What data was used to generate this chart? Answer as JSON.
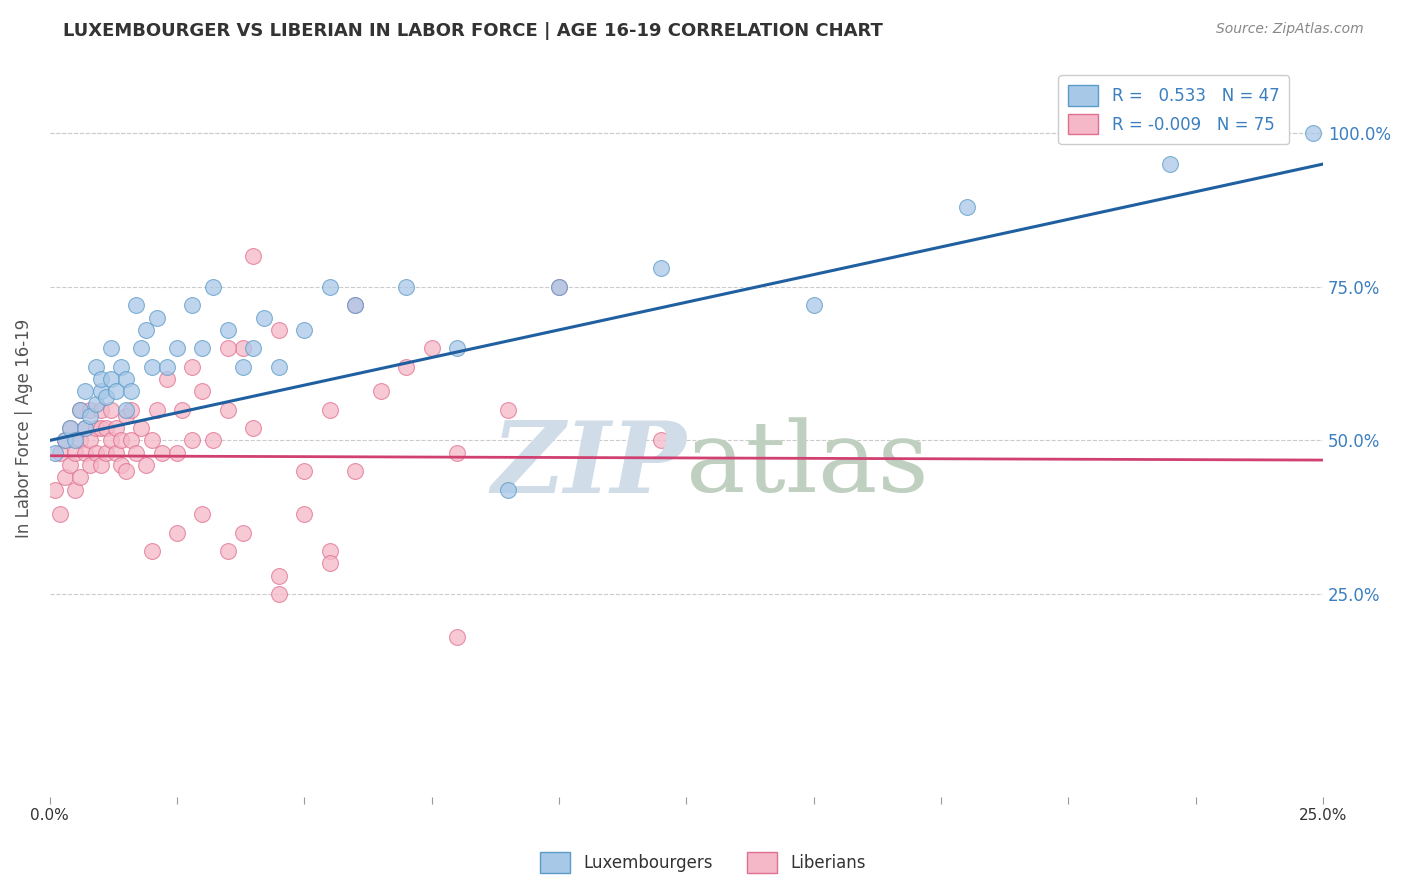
{
  "title": "LUXEMBOURGER VS LIBERIAN IN LABOR FORCE | AGE 16-19 CORRELATION CHART",
  "source": "Source: ZipAtlas.com",
  "ylabel": "In Labor Force | Age 16-19",
  "xlim": [
    0.0,
    0.25
  ],
  "ylim": [
    -0.08,
    1.12
  ],
  "right_yticks": [
    0.25,
    0.5,
    0.75,
    1.0
  ],
  "right_yticklabels": [
    "25.0%",
    "50.0%",
    "75.0%",
    "100.0%"
  ],
  "legend_r_blue": "0.533",
  "legend_n_blue": "47",
  "legend_r_pink": "-0.009",
  "legend_n_pink": "75",
  "blue_fill": "#A8C8E8",
  "blue_edge": "#5B9BC8",
  "pink_fill": "#F5B8C8",
  "pink_edge": "#E07090",
  "trend_blue_color": "#2060A0",
  "trend_pink_color": "#D04070",
  "watermark_color": "#D0DCE8",
  "blue_label": "Luxembourgers",
  "pink_label": "Liberians",
  "blue_x": [
    0.001,
    0.003,
    0.004,
    0.005,
    0.006,
    0.007,
    0.007,
    0.008,
    0.009,
    0.009,
    0.01,
    0.01,
    0.011,
    0.012,
    0.012,
    0.013,
    0.014,
    0.015,
    0.015,
    0.016,
    0.017,
    0.018,
    0.019,
    0.02,
    0.021,
    0.023,
    0.025,
    0.028,
    0.03,
    0.032,
    0.035,
    0.038,
    0.04,
    0.042,
    0.045,
    0.05,
    0.055,
    0.06,
    0.07,
    0.08,
    0.09,
    0.1,
    0.12,
    0.15,
    0.18,
    0.22,
    0.248
  ],
  "blue_y": [
    0.48,
    0.5,
    0.52,
    0.5,
    0.55,
    0.52,
    0.58,
    0.54,
    0.56,
    0.62,
    0.58,
    0.6,
    0.57,
    0.6,
    0.65,
    0.58,
    0.62,
    0.6,
    0.55,
    0.58,
    0.72,
    0.65,
    0.68,
    0.62,
    0.7,
    0.62,
    0.65,
    0.72,
    0.65,
    0.75,
    0.68,
    0.62,
    0.65,
    0.7,
    0.62,
    0.68,
    0.75,
    0.72,
    0.75,
    0.65,
    0.42,
    0.75,
    0.78,
    0.72,
    0.88,
    0.95,
    1.0
  ],
  "pink_x": [
    0.001,
    0.002,
    0.002,
    0.003,
    0.003,
    0.004,
    0.004,
    0.005,
    0.005,
    0.006,
    0.006,
    0.006,
    0.007,
    0.007,
    0.008,
    0.008,
    0.008,
    0.009,
    0.009,
    0.01,
    0.01,
    0.01,
    0.011,
    0.011,
    0.012,
    0.012,
    0.013,
    0.013,
    0.014,
    0.014,
    0.015,
    0.015,
    0.016,
    0.016,
    0.017,
    0.018,
    0.019,
    0.02,
    0.021,
    0.022,
    0.023,
    0.025,
    0.026,
    0.028,
    0.03,
    0.032,
    0.035,
    0.038,
    0.04,
    0.045,
    0.05,
    0.055,
    0.06,
    0.065,
    0.07,
    0.075,
    0.08,
    0.09,
    0.1,
    0.12,
    0.035,
    0.04,
    0.05,
    0.06,
    0.028,
    0.035,
    0.045,
    0.055,
    0.02,
    0.025,
    0.03,
    0.038,
    0.045,
    0.055,
    0.08
  ],
  "pink_y": [
    0.42,
    0.38,
    0.48,
    0.44,
    0.5,
    0.46,
    0.52,
    0.42,
    0.48,
    0.5,
    0.44,
    0.55,
    0.48,
    0.52,
    0.46,
    0.5,
    0.55,
    0.48,
    0.52,
    0.46,
    0.52,
    0.55,
    0.48,
    0.52,
    0.5,
    0.55,
    0.48,
    0.52,
    0.46,
    0.5,
    0.54,
    0.45,
    0.5,
    0.55,
    0.48,
    0.52,
    0.46,
    0.5,
    0.55,
    0.48,
    0.6,
    0.48,
    0.55,
    0.5,
    0.58,
    0.5,
    0.55,
    0.65,
    0.52,
    0.68,
    0.45,
    0.55,
    0.72,
    0.58,
    0.62,
    0.65,
    0.48,
    0.55,
    0.75,
    0.5,
    0.65,
    0.8,
    0.38,
    0.45,
    0.62,
    0.32,
    0.28,
    0.32,
    0.32,
    0.35,
    0.38,
    0.35,
    0.25,
    0.3,
    0.18
  ],
  "blue_trend_x0": 0.0,
  "blue_trend_y0": 0.5,
  "blue_trend_x1": 0.25,
  "blue_trend_y1": 0.95,
  "pink_trend_x0": 0.0,
  "pink_trend_y0": 0.475,
  "pink_trend_x1": 0.25,
  "pink_trend_y1": 0.468
}
